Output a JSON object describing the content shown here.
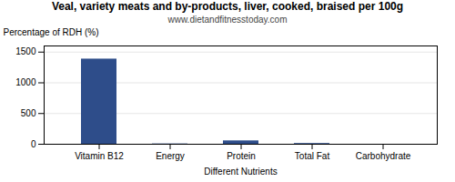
{
  "chart_data": {
    "type": "bar",
    "title": "Veal, variety meats and by-products, liver, cooked, braised per 100g",
    "subtitle": "www.dietandfitnesstoday.com",
    "categories": [
      "Vitamin B12",
      "Energy",
      "Protein",
      "Total Fat",
      "Carbohydrate"
    ],
    "values": [
      1386,
      5,
      55,
      12,
      0
    ],
    "color": "#2e4d8a",
    "xlabel": "Different Nutrients",
    "ylabel": "Percentage of RDH (%)",
    "ylim": [
      0,
      1600
    ],
    "yticks": [
      0,
      500,
      1000,
      1500
    ],
    "grid": true
  }
}
